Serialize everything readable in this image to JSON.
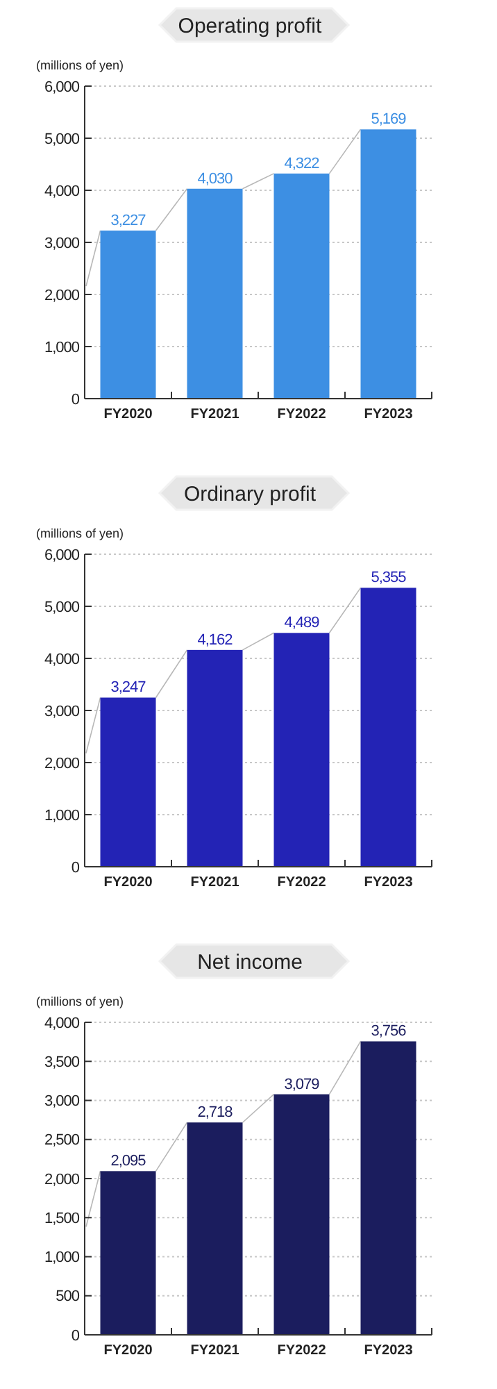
{
  "chart_data": [
    {
      "type": "bar",
      "title": "Operating profit",
      "ylabel": "(millions of yen)",
      "categories": [
        "FY2020",
        "FY2021",
        "FY2022",
        "FY2023"
      ],
      "values": [
        3227,
        4030,
        4322,
        5169
      ],
      "color": "#3d8fe3",
      "ylim": [
        0,
        6000
      ],
      "yticks": [
        {
          "value": 0,
          "label": "0"
        },
        {
          "value": 1000,
          "label": "1,000"
        },
        {
          "value": 2000,
          "label": "2,000"
        },
        {
          "value": 3000,
          "label": "3,000"
        },
        {
          "value": 4000,
          "label": "4,000"
        },
        {
          "value": 5000,
          "label": "5,000"
        },
        {
          "value": 6000,
          "label": "6,000"
        }
      ],
      "grid": "y",
      "value_labels": [
        "3,227",
        "4,030",
        "4,322",
        "5,169"
      ]
    },
    {
      "type": "bar",
      "title": "Ordinary profit",
      "ylabel": "(millions of yen)",
      "categories": [
        "FY2020",
        "FY2021",
        "FY2022",
        "FY2023"
      ],
      "values": [
        3247,
        4162,
        4489,
        5355
      ],
      "color": "#2323b5",
      "ylim": [
        0,
        6000
      ],
      "yticks": [
        {
          "value": 0,
          "label": "0"
        },
        {
          "value": 1000,
          "label": "1,000"
        },
        {
          "value": 2000,
          "label": "2,000"
        },
        {
          "value": 3000,
          "label": "3,000"
        },
        {
          "value": 4000,
          "label": "4,000"
        },
        {
          "value": 5000,
          "label": "5,000"
        },
        {
          "value": 6000,
          "label": "6,000"
        }
      ],
      "grid": "y",
      "value_labels": [
        "3,247",
        "4,162",
        "4,489",
        "5,355"
      ]
    },
    {
      "type": "bar",
      "title": "Net income",
      "ylabel": "(millions of yen)",
      "categories": [
        "FY2020",
        "FY2021",
        "FY2022",
        "FY2023"
      ],
      "values": [
        2095,
        2718,
        3079,
        3756
      ],
      "color": "#1b1d5e",
      "ylim": [
        0,
        4000
      ],
      "yticks": [
        {
          "value": 0,
          "label": "0"
        },
        {
          "value": 500,
          "label": "500"
        },
        {
          "value": 1000,
          "label": "1,000"
        },
        {
          "value": 1500,
          "label": "1,500"
        },
        {
          "value": 2000,
          "label": "2,000"
        },
        {
          "value": 2500,
          "label": "2,500"
        },
        {
          "value": 3000,
          "label": "3,000"
        },
        {
          "value": 3500,
          "label": "3,500"
        },
        {
          "value": 4000,
          "label": "4,000"
        }
      ],
      "grid": "y",
      "value_labels": [
        "2,095",
        "2,718",
        "3,079",
        "3,756"
      ]
    }
  ]
}
